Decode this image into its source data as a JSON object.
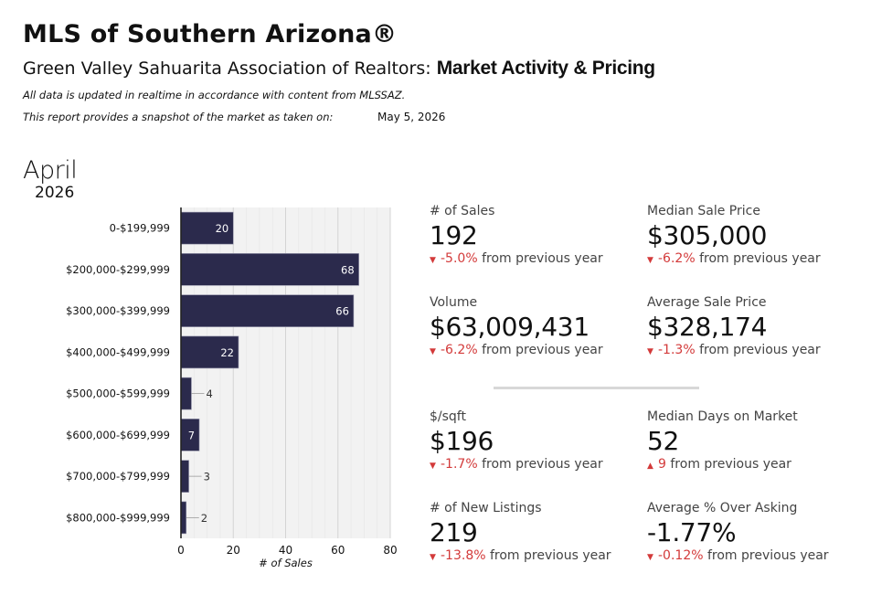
{
  "header": {
    "org_title": "MLS of Southern Arizona®",
    "report_prefix": "Green Valley Sahuarita Association of Realtors: ",
    "report_strong": "Market Activity & Pricing",
    "note_realtime": "All data is updated in realtime in accordance with content from MLSSAZ.",
    "note_snapshot": "This report provides a snapshot of the market as taken on:",
    "report_date": "May 5, 2026"
  },
  "period": {
    "month": "April",
    "year": "2026"
  },
  "colors": {
    "bar": "#2b2a4c",
    "plot_bg": "#f2f2f2",
    "negative": "#d33a3a",
    "divider": "#d8d8d8"
  },
  "chart_data": {
    "type": "bar",
    "orientation": "horizontal",
    "categories": [
      "0-$199,999",
      "$200,000-$299,999",
      "$300,000-$399,999",
      "$400,000-$499,999",
      "$500,000-$599,999",
      "$600,000-$699,999",
      "$700,000-$799,999",
      "$800,000-$999,999"
    ],
    "values": [
      20,
      68,
      66,
      22,
      4,
      7,
      3,
      2
    ],
    "xlabel": "# of Sales",
    "ylabel": "",
    "xlim": [
      0,
      80
    ],
    "xticks": [
      0,
      20,
      40,
      60,
      80
    ],
    "grid": true
  },
  "stats": [
    {
      "label": "# of Sales",
      "value": "192",
      "direction": "down",
      "pct": "-5.0%",
      "suffix": " from previous year"
    },
    {
      "label": "Median Sale Price",
      "value": "$305,000",
      "direction": "down",
      "pct": "-6.2%",
      "suffix": " from previous year"
    },
    {
      "label": "Volume",
      "value": "$63,009,431",
      "direction": "down",
      "pct": "-6.2%",
      "suffix": " from previous year"
    },
    {
      "label": "Average Sale Price",
      "value": "$328,174",
      "direction": "down",
      "pct": "-1.3%",
      "suffix": " from previous year"
    },
    {
      "label": "$/sqft",
      "value": "$196",
      "direction": "down",
      "pct": "-1.7%",
      "suffix": " from previous year"
    },
    {
      "label": "Median Days on Market",
      "value": "52",
      "direction": "up",
      "pct": "9",
      "suffix": " from previous year"
    },
    {
      "label": "# of New Listings",
      "value": "219",
      "direction": "down",
      "pct": "-13.8%",
      "suffix": " from previous year"
    },
    {
      "label": "Average % Over Asking",
      "value": "-1.77%",
      "direction": "down",
      "pct": "-0.12%",
      "suffix": " from previous year"
    }
  ]
}
